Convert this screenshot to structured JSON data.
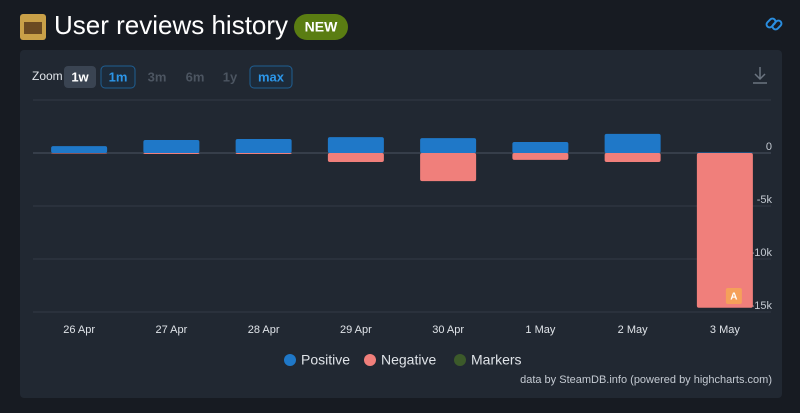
{
  "header": {
    "title": "User reviews history",
    "badge": "NEW"
  },
  "zoom": {
    "label": "Zoom",
    "options": [
      "1w",
      "1m",
      "3m",
      "6m",
      "1y",
      "max"
    ]
  },
  "chart_data": {
    "type": "bar",
    "categories": [
      "26 Apr",
      "27 Apr",
      "28 Apr",
      "29 Apr",
      "30 Apr",
      "1 May",
      "2 May",
      "3 May"
    ],
    "series": [
      {
        "name": "Positive",
        "color": "#1f78c8",
        "values": [
          650,
          1230,
          1320,
          1500,
          1400,
          1040,
          1800,
          50
        ]
      },
      {
        "name": "Negative",
        "color": "#f07f7b",
        "values": [
          -50,
          -100,
          -100,
          -850,
          -2650,
          -650,
          -850,
          -14600
        ]
      },
      {
        "name": "Markers",
        "color": "#3c5a2a",
        "values": [
          null,
          null,
          null,
          null,
          null,
          null,
          null,
          null
        ]
      }
    ],
    "flags": [
      {
        "category": "3 May",
        "label": "A"
      }
    ],
    "ylim": [
      -15000,
      5000
    ],
    "yticks": [
      0,
      {
        "value": -5000,
        "label": "-5k"
      },
      {
        "value": -10000,
        "label": "-10k"
      },
      {
        "value": -15000,
        "label": "-15k"
      }
    ],
    "grid": true,
    "credit": "data by SteamDB.info (powered by highcharts.com)"
  }
}
